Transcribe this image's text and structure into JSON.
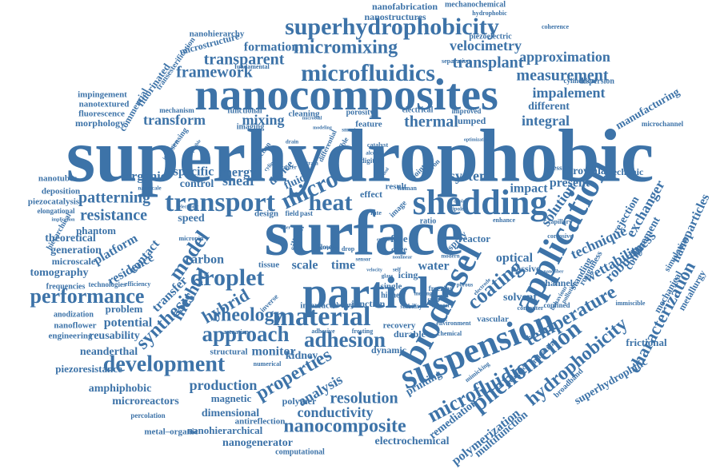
{
  "accent_color": "#3d73a8",
  "words": [
    "superhydrophobic",
    "surface",
    "particle",
    "nanocomposites",
    "application",
    "suspension",
    "shedding",
    "biodiesel",
    "transport",
    "superhydrophobicity",
    "microfluidics",
    "material",
    "droplet",
    "development",
    "micro",
    "heat",
    "approach",
    "adhesion",
    "rheology",
    "phenomenon",
    "microfluidic",
    "properties",
    "coating",
    "hydrophobicity",
    "temperature",
    "performance",
    "characterization",
    "micromixing",
    "nanocomposite",
    "model",
    "method",
    "synthesis",
    "hybrid",
    "resistance",
    "patterning",
    "transparent",
    "framework",
    "measurement",
    "transplant",
    "approximation",
    "velocimetry",
    "formation",
    "impalement",
    "integral",
    "thermal",
    "transform",
    "mixing",
    "conductivity",
    "resolution",
    "production",
    "analysis",
    "wettability",
    "robustness",
    "exchanger",
    "technique",
    "rejection",
    "confinement",
    "solution",
    "system",
    "impact",
    "present",
    "brownian",
    "mechanic",
    "optical",
    "carbon",
    "contact",
    "platform",
    "residence",
    "transfer",
    "potential",
    "problem",
    "reusability",
    "amphiphobic",
    "microreactors",
    "magnetic",
    "dimensional",
    "nanohierarchical",
    "nanogenerator",
    "electrochemical",
    "antireflection",
    "computational",
    "polymer",
    "polymerization",
    "multifunction",
    "remediation",
    "printing",
    "kidney",
    "monitor",
    "structural",
    "dynamic",
    "durable",
    "recovery",
    "interface",
    "junction",
    "water",
    "icing",
    "single",
    "higher",
    "solvent",
    "passive",
    "vascular",
    "industrial",
    "nanoparticles",
    "mechanical",
    "superhydrophilic",
    "frictional",
    "metallurgy",
    "manufacturing",
    "different",
    "nanofabrication",
    "nanostructures",
    "mechanochemical",
    "hydrophobic",
    "piezoelectric",
    "coherence",
    "nanohierarchy",
    "microstructure",
    "fluorinated",
    "transesterification",
    "impingement",
    "nanotextured",
    "fluorescence",
    "morphology",
    "commercial",
    "mechanism",
    "functional",
    "imaging",
    "cleaning",
    "porosity",
    "electrical",
    "feature",
    "lumped",
    "improved",
    "microchannel",
    "cylindrical",
    "dispersion",
    "fundamental",
    "separation",
    "nanotubes",
    "deposition",
    "piezocatalysis",
    "elongational",
    "hierarchical",
    "theoretical",
    "generation",
    "microscale",
    "tomography",
    "phantom",
    "frequencies",
    "technologies",
    "efficiency",
    "anodization",
    "nanoflower",
    "engineering",
    "neanderthal",
    "piezoresistance",
    "percolation",
    "metal–organic",
    "speed",
    "organic",
    "specific",
    "energy",
    "control",
    "shear",
    "fluid",
    "device",
    "effect",
    "result",
    "design",
    "field",
    "past",
    "silicon",
    "spray",
    "reactor",
    "tissue",
    "scale",
    "time",
    "channel",
    "standing",
    "roughness",
    "simulation",
    "pressure",
    "capillary",
    "confined",
    "corrosive",
    "broadband",
    "behaviour",
    "computer",
    "immiscible",
    "pollution",
    "divergence",
    "mimicking",
    "environment",
    "chemical",
    "photon",
    "ratio",
    "free",
    "care",
    "stability",
    "adhesive",
    "frosting",
    "actuation",
    "inverse",
    "numerical",
    "sensing",
    "interaction",
    "cancer",
    "image",
    "point",
    "electron",
    "human",
    "modern",
    "freezing",
    "drop",
    "flow",
    "sensor",
    "melting",
    "porous",
    "complex",
    "chapter",
    "microbial",
    "laser",
    "emission",
    "nonlinear",
    "velocity",
    "glass",
    "self",
    "cylinder",
    "compatible",
    "electrode",
    "catalyst",
    "alcohol",
    "modeling",
    "reaction",
    "smart",
    "aerosol",
    "doping",
    "flexible",
    "digital",
    "differential",
    "optimization",
    "nanoscale",
    "implication",
    "electronic",
    "micropin",
    "drain",
    "strain",
    "graphene",
    "rate",
    "dipole",
    "enhance",
    "nanofiber"
  ]
}
